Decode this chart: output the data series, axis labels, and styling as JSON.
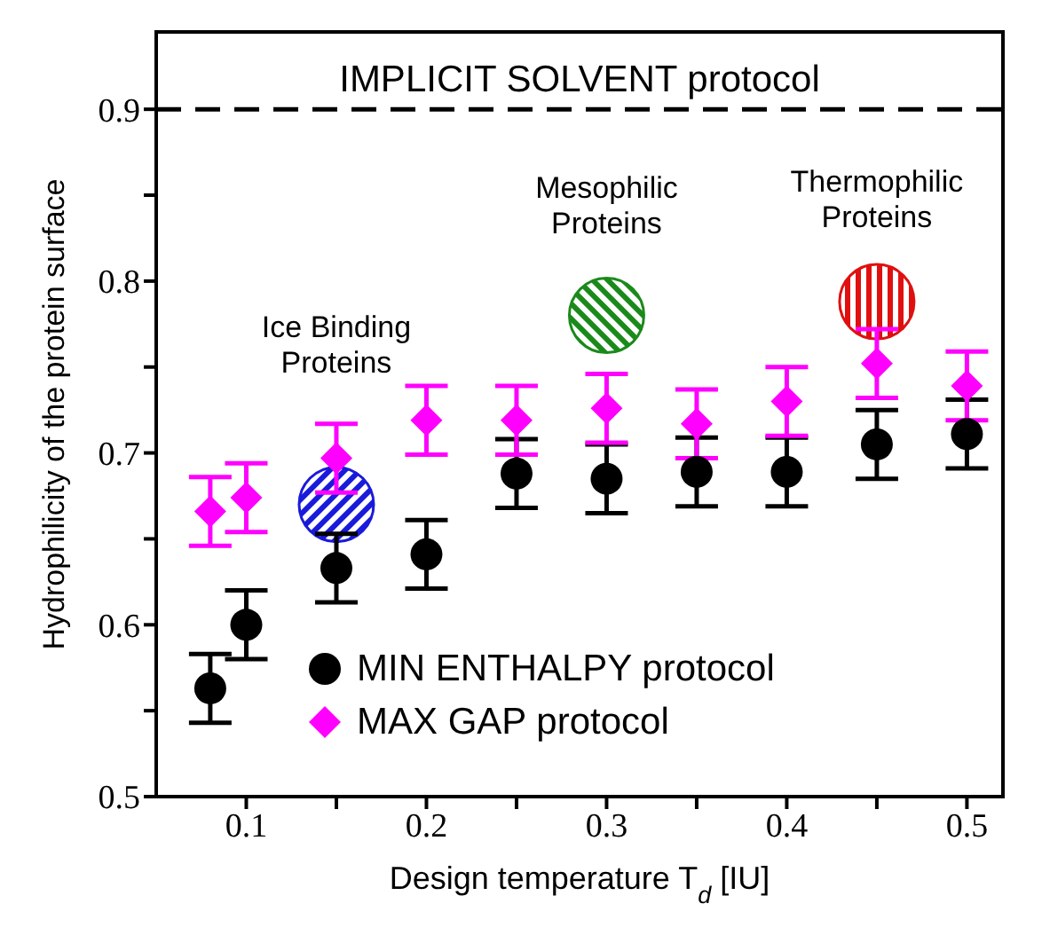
{
  "chart_data": {
    "type": "scatter",
    "xlabel": "Design temperature T$_{d}$ [IU]",
    "ylabel": "Hydrophilicity of the protein surface",
    "x": [
      0.08,
      0.1,
      0.15,
      0.2,
      0.25,
      0.3,
      0.35,
      0.4,
      0.45,
      0.5
    ],
    "series": [
      {
        "name": "MIN ENTHALPY protocol",
        "color": "#000000",
        "marker": "circle",
        "values": [
          0.563,
          0.6,
          0.633,
          0.641,
          0.688,
          0.685,
          0.689,
          0.689,
          0.705,
          0.711
        ],
        "errors": [
          0.02,
          0.02,
          0.02,
          0.02,
          0.02,
          0.02,
          0.02,
          0.02,
          0.02,
          0.02
        ]
      },
      {
        "name": "MAX GAP protocol",
        "color": "#ff00ff",
        "marker": "diamond",
        "values": [
          0.666,
          0.674,
          0.697,
          0.719,
          0.719,
          0.726,
          0.717,
          0.73,
          0.752,
          0.739
        ],
        "errors": [
          0.02,
          0.02,
          0.02,
          0.02,
          0.02,
          0.02,
          0.02,
          0.02,
          0.02,
          0.02
        ]
      }
    ],
    "xlim": [
      0.05,
      0.52
    ],
    "xticks": [
      0.1,
      {
        "value": 0.15,
        "label": null
      },
      0.2,
      {
        "value": 0.25,
        "label": null
      },
      0.3,
      {
        "value": 0.35,
        "label": null
      },
      0.4,
      {
        "value": 0.45,
        "label": null
      },
      0.5
    ],
    "ylim": [
      0.5,
      0.945
    ],
    "yticks": [
      0.5,
      {
        "value": 0.55,
        "label": null
      },
      0.6,
      {
        "value": 0.65,
        "label": null
      },
      0.7,
      {
        "value": 0.75,
        "label": null
      },
      0.8,
      {
        "value": 0.85,
        "label": null
      },
      0.9
    ],
    "ref_lines": [
      {
        "axis": "y",
        "value": 0.9,
        "label": "IMPLICIT SOLVENT protocol",
        "color": "#000000",
        "line_style": "dashed"
      }
    ],
    "annotations": [
      "Ice Binding Proteins",
      "Mesophilic Proteins",
      "Thermophilic Proteins"
    ],
    "grid": false,
    "legend": "bottom"
  }
}
